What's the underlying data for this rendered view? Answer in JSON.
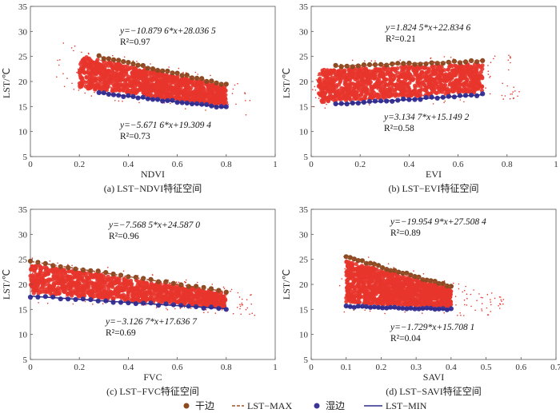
{
  "chart_data": [
    {
      "type": "scatter",
      "caption": "(a) LST−NDVI特征空间",
      "xlabel": "NDVI",
      "ylabel": "LST/℃",
      "xlim": [
        0,
        1
      ],
      "ylim": [
        5,
        35
      ],
      "xticks": [
        "0",
        "0.2",
        "0.4",
        "0.6",
        "0.8",
        "1"
      ],
      "yticks": [
        "5",
        "10",
        "15",
        "20",
        "25",
        "30",
        "35"
      ],
      "dry_fit": {
        "slope": -10.8796,
        "intercept": 28.0365,
        "eq": "y=−10.879 6*x+28.036 5",
        "r2_label": "R²=0.97"
      },
      "wet_fit": {
        "slope": -5.6716,
        "intercept": 19.3094,
        "eq": "y=−5.671 6*x+19.309 4",
        "r2_label": "R²=0.73"
      },
      "x_range": [
        0.28,
        0.8
      ],
      "dense_x": [
        0.2,
        0.8
      ],
      "scatter_x": [
        0.1,
        0.9
      ]
    },
    {
      "type": "scatter",
      "caption": "(b) LST−EVI特征空间",
      "xlabel": "EVI",
      "ylabel": "LST/℃",
      "xlim": [
        0,
        1
      ],
      "ylim": [
        5,
        35
      ],
      "xticks": [
        "0",
        "0.2",
        "0.4",
        "0.6",
        "0.8",
        "1"
      ],
      "yticks": [
        "5",
        "10",
        "15",
        "20",
        "25",
        "30",
        "35"
      ],
      "dry_fit": {
        "slope": 1.8245,
        "intercept": 22.8346,
        "eq": "y=1.824 5*x+22.834 6",
        "r2_label": "R²=0.21"
      },
      "wet_fit": {
        "slope": 3.1347,
        "intercept": 15.1492,
        "eq": "y=3.134 7*x+15.149 2",
        "r2_label": "R²=0.58"
      },
      "x_range": [
        0.1,
        0.7
      ],
      "dense_x": [
        0.03,
        0.7
      ],
      "scatter_x": [
        0.0,
        0.85
      ]
    },
    {
      "type": "scatter",
      "caption": "(c)   LST−FVC特征空间",
      "xlabel": "FVC",
      "ylabel": "LST/℃",
      "xlim": [
        0,
        1
      ],
      "ylim": [
        5,
        35
      ],
      "xticks": [
        "0",
        "0.2",
        "0.4",
        "0.6",
        "0.8",
        "1"
      ],
      "yticks": [
        "5",
        "10",
        "15",
        "20",
        "25",
        "30",
        "35"
      ],
      "dry_fit": {
        "slope": -7.5685,
        "intercept": 24.587,
        "eq": "y=−7.568 5*x+24.587 0",
        "r2_label": "R²=0.96"
      },
      "wet_fit": {
        "slope": -3.1267,
        "intercept": 17.6367,
        "eq": "y=−3.126 7*x+17.636 7",
        "r2_label": "R²=0.69"
      },
      "x_range": [
        0.0,
        0.8
      ],
      "dense_x": [
        0.0,
        0.8
      ],
      "scatter_x": [
        0.0,
        0.92
      ]
    },
    {
      "type": "scatter",
      "caption": "(d)   LST−SAVI特征空间",
      "xlabel": "SAVI",
      "ylabel": "LST/℃",
      "xlim": [
        0,
        0.7
      ],
      "ylim": [
        5,
        35
      ],
      "xticks": [
        "0",
        "0.1",
        "0.2",
        "0.3",
        "0.4",
        "0.5",
        "0.6",
        "0.7"
      ],
      "yticks": [
        "5",
        "10",
        "15",
        "20",
        "25",
        "30",
        "35"
      ],
      "dry_fit": {
        "slope": -19.9549,
        "intercept": 27.5084,
        "eq": "y=−19.954 9*x+27.508 4",
        "r2_label": "R²=0.89"
      },
      "wet_fit": {
        "slope": -1.7291,
        "intercept": 15.7081,
        "eq": "y=−1.729*x+15.708 1",
        "r2_label": "R²=0.04"
      },
      "x_range": [
        0.1,
        0.4
      ],
      "dense_x": [
        0.1,
        0.4
      ],
      "scatter_x": [
        0.08,
        0.55
      ]
    }
  ],
  "legend": {
    "dry": "干边",
    "max": "LST−MAX",
    "wet": "湿边",
    "min": "LST−MIN"
  },
  "colors": {
    "cloud": "#e8352c",
    "dry_points": "#8b4a22",
    "wet_points": "#3b3598",
    "max_line": "#a0522d",
    "min_line": "#2d2a8a"
  }
}
